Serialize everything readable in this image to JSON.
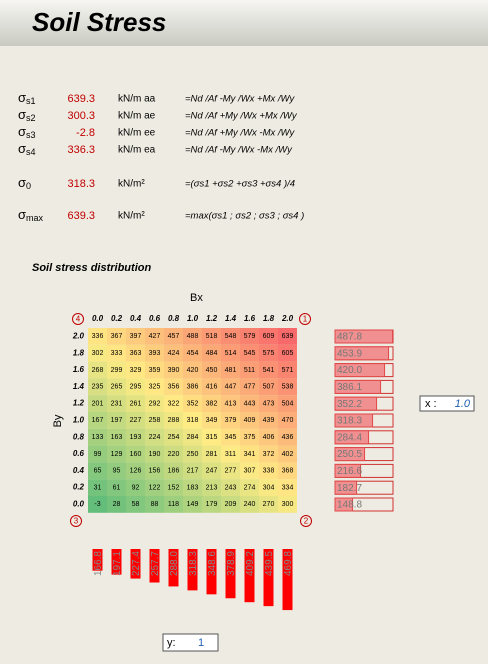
{
  "header": {
    "title": "Soil Stress"
  },
  "stresses": [
    {
      "symbol": "σ",
      "sub": "s1",
      "value": 639.3,
      "unit": "kN/m aa",
      "formula": "=Nd /Af -My /Wx +Mx /Wy"
    },
    {
      "symbol": "σ",
      "sub": "s2",
      "value": 300.3,
      "unit": "kN/m ae",
      "formula": "=Nd /Af +My /Wx +Mx /Wy"
    },
    {
      "symbol": "σ",
      "sub": "s3",
      "value": -2.8,
      "unit": "kN/m ee",
      "formula": "=Nd /Af +My /Wx -Mx /Wy"
    },
    {
      "symbol": "σ",
      "sub": "s4",
      "value": 336.3,
      "unit": "kN/m ea",
      "formula": "=Nd /Af -My /Wx -Mx /Wy"
    },
    {
      "symbol": "σ",
      "sub": "0",
      "value": 318.3,
      "unit": "kN/m²",
      "formula": "=(σs1 +σs2 +σs3 +σs4 )/4"
    },
    {
      "symbol": "σ",
      "sub": "max",
      "value": 639.3,
      "unit": "kN/m²",
      "formula": "=max(σs1 ; σs2 ; σs3 ; σs4 )"
    }
  ],
  "distribution": {
    "title": "Soil stress distribution",
    "x_label": "Bx",
    "y_label": "By",
    "corners": [
      "4",
      "1",
      "3",
      "2"
    ],
    "columns": [
      "0.0",
      "0.2",
      "0.4",
      "0.6",
      "0.8",
      "1.0",
      "1.2",
      "1.4",
      "1.6",
      "1.8",
      "2.0"
    ],
    "rows": [
      "2.0",
      "1.8",
      "1.6",
      "1.4",
      "1.2",
      "1.0",
      "0.8",
      "0.6",
      "0.4",
      "0.2",
      "0.0"
    ],
    "cells": [
      [
        336,
        367,
        397,
        427,
        457,
        488,
        518,
        548,
        579,
        609,
        639
      ],
      [
        302,
        333,
        363,
        393,
        424,
        454,
        484,
        514,
        545,
        575,
        605
      ],
      [
        268,
        299,
        329,
        359,
        390,
        420,
        450,
        481,
        511,
        541,
        571
      ],
      [
        235,
        265,
        295,
        325,
        356,
        386,
        416,
        447,
        477,
        507,
        538
      ],
      [
        201,
        231,
        261,
        292,
        322,
        352,
        382,
        413,
        443,
        473,
        504
      ],
      [
        167,
        197,
        227,
        258,
        288,
        318,
        349,
        379,
        409,
        439,
        470
      ],
      [
        133,
        163,
        193,
        224,
        254,
        284,
        315,
        345,
        375,
        406,
        436
      ],
      [
        99,
        129,
        160,
        190,
        220,
        250,
        281,
        311,
        341,
        372,
        402
      ],
      [
        65,
        95,
        126,
        156,
        186,
        217,
        247,
        277,
        307,
        338,
        368
      ],
      [
        31,
        61,
        92,
        122,
        152,
        183,
        213,
        243,
        274,
        304,
        334
      ],
      [
        -3,
        28,
        58,
        88,
        118,
        149,
        179,
        209,
        240,
        270,
        300
      ]
    ]
  },
  "section_x": {
    "label": "x :",
    "value": "1.0",
    "values": [
      487.8,
      453.9,
      420,
      386.1,
      352.2,
      318.3,
      284.4,
      250.5,
      216.6,
      182.7,
      148.8
    ],
    "value_labels": [
      "487.8",
      "453.9",
      "420.0",
      "386.1",
      "352.2",
      "318.3",
      "284.4",
      "250.5",
      "216.6",
      "182.7",
      "148.8"
    ]
  },
  "section_y": {
    "label": "y:",
    "value": "1",
    "values": [
      166.8,
      197.1,
      227.4,
      257.7,
      288,
      318.3,
      348.6,
      378.9,
      409.2,
      439.5,
      469.8
    ],
    "value_labels": [
      "166.8",
      "197.1",
      "227.4",
      "257.7",
      "288.0",
      "318.3",
      "348.6",
      "378.9",
      "409.2",
      "439.5",
      "469.8"
    ]
  }
}
